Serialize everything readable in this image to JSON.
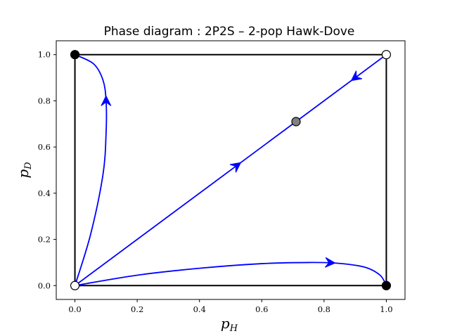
{
  "chart_data": {
    "type": "line",
    "title": "Phase diagram : 2P2S – 2-pop Hawk-Dove",
    "xlabel": "p",
    "xlabel_sub": "H",
    "ylabel": "p",
    "ylabel_sub": "D",
    "xlim": [
      -0.06,
      1.06
    ],
    "ylim": [
      -0.06,
      1.06
    ],
    "xticks": [
      0.0,
      0.2,
      0.4,
      0.6,
      0.8,
      1.0
    ],
    "yticks": [
      0.0,
      0.2,
      0.4,
      0.6,
      0.8,
      1.0
    ],
    "xtick_labels": [
      "0.0",
      "0.2",
      "0.4",
      "0.6",
      "0.8",
      "1.0"
    ],
    "ytick_labels": [
      "0.0",
      "0.2",
      "0.4",
      "0.6",
      "0.8",
      "1.0"
    ],
    "grid": false,
    "boundary_square": [
      [
        0,
        0
      ],
      [
        1,
        0
      ],
      [
        1,
        1
      ],
      [
        0,
        1
      ]
    ],
    "series": [
      {
        "name": "trajectory-to-top-left",
        "color": "#0000ff",
        "points": [
          [
            0.0,
            0.0
          ],
          [
            0.05,
            0.22
          ],
          [
            0.09,
            0.48
          ],
          [
            0.1,
            0.66
          ],
          [
            0.1,
            0.8
          ],
          [
            0.09,
            0.89
          ],
          [
            0.06,
            0.96
          ],
          [
            0.0,
            1.0
          ]
        ],
        "arrow_at": [
          0.1,
          0.8
        ],
        "arrow_toward": [
          0.1,
          0.86
        ]
      },
      {
        "name": "diagonal-from-origin",
        "color": "#0000ff",
        "points": [
          [
            0.0,
            0.0
          ],
          [
            0.71,
            0.71
          ]
        ],
        "arrow_at": [
          0.52,
          0.52
        ],
        "arrow_toward": [
          0.6,
          0.6
        ]
      },
      {
        "name": "diagonal-from-top-right",
        "color": "#0000ff",
        "points": [
          [
            1.0,
            1.0
          ],
          [
            0.71,
            0.71
          ]
        ],
        "arrow_at": [
          0.9,
          0.9
        ],
        "arrow_toward": [
          0.85,
          0.85
        ]
      },
      {
        "name": "trajectory-to-bottom-right",
        "color": "#0000ff",
        "points": [
          [
            0.0,
            0.0
          ],
          [
            0.2,
            0.045
          ],
          [
            0.4,
            0.075
          ],
          [
            0.6,
            0.095
          ],
          [
            0.75,
            0.1
          ],
          [
            0.84,
            0.097
          ],
          [
            0.93,
            0.08
          ],
          [
            0.98,
            0.045
          ],
          [
            1.0,
            0.0
          ]
        ],
        "arrow_at": [
          0.82,
          0.099
        ],
        "arrow_toward": [
          0.88,
          0.094
        ]
      }
    ],
    "equilibria": [
      {
        "x": 0.0,
        "y": 1.0,
        "type": "stable",
        "fill": "#000000"
      },
      {
        "x": 1.0,
        "y": 0.0,
        "type": "stable",
        "fill": "#000000"
      },
      {
        "x": 0.0,
        "y": 0.0,
        "type": "unstable",
        "fill": "#ffffff"
      },
      {
        "x": 1.0,
        "y": 1.0,
        "type": "unstable",
        "fill": "#ffffff"
      },
      {
        "x": 0.71,
        "y": 0.71,
        "type": "saddle",
        "fill": "#808080"
      }
    ]
  }
}
